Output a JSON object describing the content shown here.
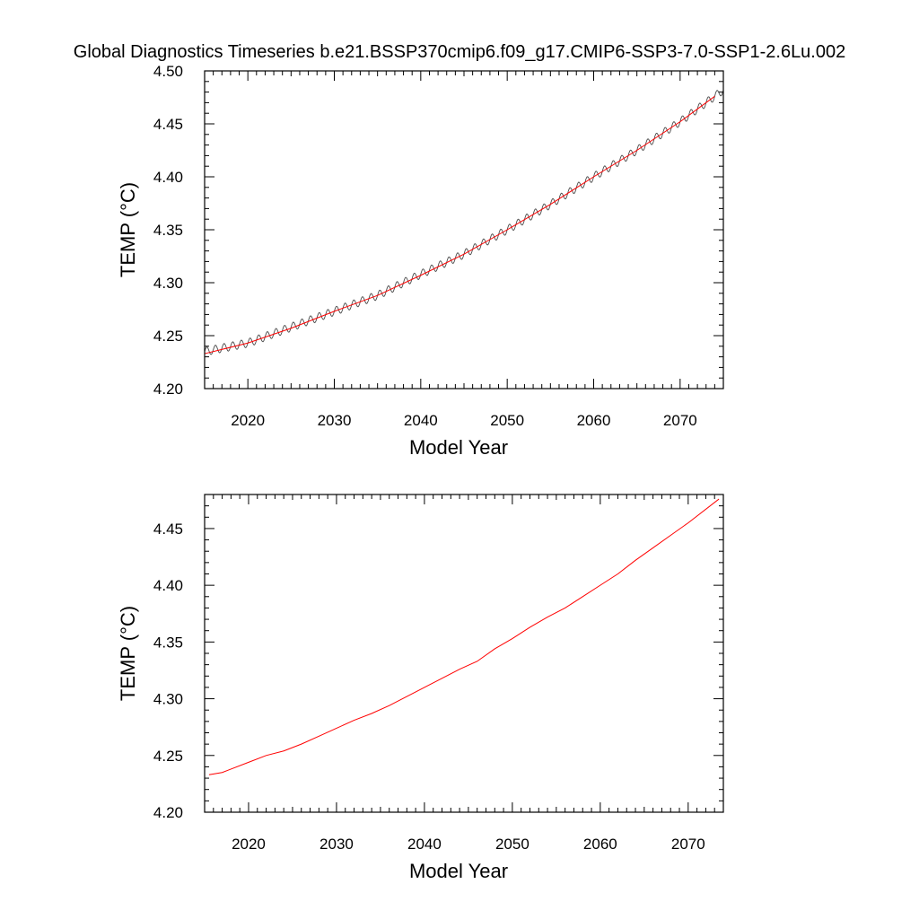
{
  "title": "Global Diagnostics Timeseries b.e21.BSSP370cmip6.f09_g17.CMIP6-SSP3-7.0-SSP1-2.6Lu.002",
  "colors": {
    "raw_series": "#4a4a4a",
    "smoothed_series": "#ff0000",
    "axes": "#000000"
  },
  "chart_data": [
    {
      "type": "line",
      "xlabel": "Model Year",
      "ylabel": "TEMP (°C)",
      "xlim": [
        2015,
        2075
      ],
      "ylim": [
        4.2,
        4.5
      ],
      "x_ticks": [
        2020,
        2030,
        2040,
        2050,
        2060,
        2070
      ],
      "x_tick_labels": [
        "2020",
        "2030",
        "2040",
        "2050",
        "2060",
        "2070"
      ],
      "y_ticks": [
        4.2,
        4.25,
        4.3,
        4.35,
        4.4,
        4.45,
        4.5
      ],
      "y_tick_labels": [
        "4.20",
        "4.25",
        "4.30",
        "4.35",
        "4.40",
        "4.45",
        "4.50"
      ],
      "grid": false,
      "series": [
        {
          "style": "monthly raw (seasonal oscillation, amplitude ≈0.004)",
          "x": [
            2015,
            2020,
            2025,
            2030,
            2035,
            2040,
            2045,
            2050,
            2055,
            2060,
            2065,
            2070,
            2075
          ],
          "values": [
            4.235,
            4.243,
            4.258,
            4.273,
            4.288,
            4.308,
            4.327,
            4.35,
            4.374,
            4.4,
            4.425,
            4.452,
            4.482
          ],
          "oscillation_amplitude": 0.004
        },
        {
          "style": "running mean",
          "x": [
            2015,
            2020,
            2025,
            2030,
            2035,
            2040,
            2045,
            2050,
            2055,
            2060,
            2065,
            2070,
            2074
          ],
          "values": [
            4.233,
            4.243,
            4.257,
            4.273,
            4.288,
            4.307,
            4.327,
            4.35,
            4.374,
            4.4,
            4.425,
            4.452,
            4.476
          ]
        }
      ]
    },
    {
      "type": "line",
      "xlabel": "Model Year",
      "ylabel": "TEMP (°C)",
      "xlim": [
        2015,
        2074
      ],
      "ylim": [
        4.2,
        4.48
      ],
      "x_ticks": [
        2020,
        2030,
        2040,
        2050,
        2060,
        2070
      ],
      "x_tick_labels": [
        "2020",
        "2030",
        "2040",
        "2050",
        "2060",
        "2070"
      ],
      "y_ticks": [
        4.2,
        4.25,
        4.3,
        4.35,
        4.4,
        4.45
      ],
      "y_tick_labels": [
        "4.20",
        "4.25",
        "4.30",
        "4.35",
        "4.40",
        "4.45"
      ],
      "grid": false,
      "series": [
        {
          "style": "running mean",
          "x": [
            2015.5,
            2017,
            2020,
            2022,
            2024,
            2026,
            2028,
            2030,
            2032,
            2034,
            2036,
            2038,
            2040,
            2042,
            2044,
            2046,
            2048,
            2050,
            2052,
            2054,
            2056,
            2058,
            2060,
            2062,
            2064,
            2066,
            2068,
            2070,
            2073.5
          ],
          "values": [
            4.233,
            4.235,
            4.244,
            4.25,
            4.254,
            4.26,
            4.267,
            4.274,
            4.281,
            4.287,
            4.294,
            4.302,
            4.31,
            4.318,
            4.326,
            4.333,
            4.344,
            4.353,
            4.363,
            4.372,
            4.38,
            4.39,
            4.4,
            4.41,
            4.422,
            4.433,
            4.444,
            4.455,
            4.476
          ]
        }
      ]
    }
  ]
}
